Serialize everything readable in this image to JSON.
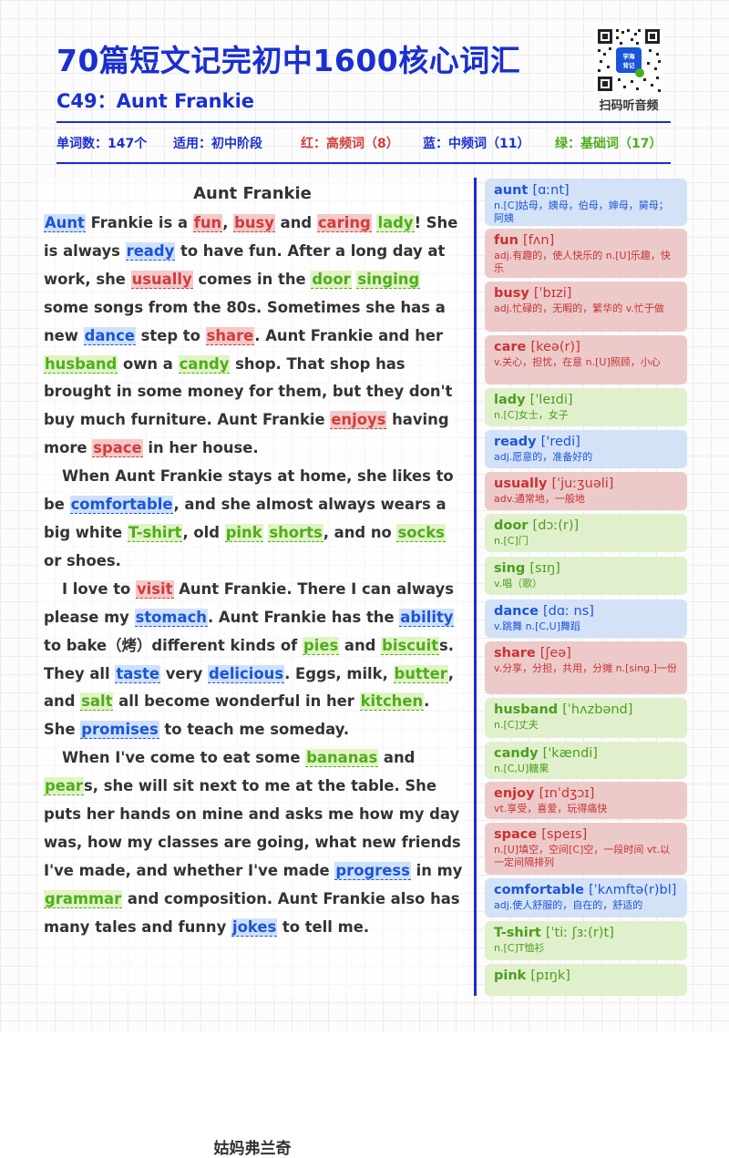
{
  "header": {
    "title": "70篇短文记完初中1600核心词汇",
    "subtitle": "C49：Aunt Frankie",
    "qr_label": "扫码听音频",
    "qr_logo_text": "学海 背记"
  },
  "stats": {
    "words": "单词数：147个",
    "level": "适用：初中阶段",
    "red": "红：高频词（8）",
    "blue": "蓝：中频词（11）",
    "green": "绿：基础词（17）"
  },
  "colors": {
    "brand": "#1a2fd0",
    "red": "#d23c3c",
    "blue": "#1a55d8",
    "green": "#4cae1c"
  },
  "article": {
    "title": "Aunt Frankie",
    "footer": "姑妈弗兰奇",
    "paragraphs": [
      [
        [
          "Aunt",
          "b"
        ],
        [
          " Frankie is a ",
          ""
        ],
        [
          "fun",
          "r"
        ],
        [
          ", ",
          ""
        ],
        [
          "busy",
          "r"
        ],
        [
          " and ",
          ""
        ],
        [
          "caring",
          "r"
        ],
        [
          " ",
          ""
        ],
        [
          "lady",
          "g"
        ],
        [
          "! She is always ",
          ""
        ],
        [
          "ready",
          "b"
        ],
        [
          " to have fun. After a long day at work, she ",
          ""
        ],
        [
          "usually",
          "r"
        ],
        [
          " comes in the ",
          ""
        ],
        [
          "door",
          "g"
        ],
        [
          " ",
          ""
        ],
        [
          "singing",
          "g"
        ],
        [
          " some songs from the 80s. Sometimes she has a new ",
          ""
        ],
        [
          "dance",
          "b"
        ],
        [
          " step to ",
          ""
        ],
        [
          "share",
          "r"
        ],
        [
          ". Aunt Frankie and her ",
          ""
        ],
        [
          "husband",
          "g"
        ],
        [
          " own a ",
          ""
        ],
        [
          "candy",
          "g"
        ],
        [
          " shop. That shop has brought in some money for them, but they don't buy much furniture. Aunt Frankie ",
          ""
        ],
        [
          "enjoys",
          "r"
        ],
        [
          " having more ",
          ""
        ],
        [
          "space",
          "r"
        ],
        [
          " in her house.",
          ""
        ]
      ],
      [
        [
          "When Aunt Frankie stays at home, she likes to be ",
          ""
        ],
        [
          "comfortable",
          "b"
        ],
        [
          ", and she almost always wears a big white ",
          ""
        ],
        [
          "T-shirt",
          "g"
        ],
        [
          ", old ",
          ""
        ],
        [
          "pink",
          "g"
        ],
        [
          " ",
          ""
        ],
        [
          "shorts",
          "g"
        ],
        [
          ", and no ",
          ""
        ],
        [
          "socks",
          "g"
        ],
        [
          " or shoes.",
          ""
        ]
      ],
      [
        [
          "I love to ",
          ""
        ],
        [
          "visit",
          "r"
        ],
        [
          " Aunt Frankie. There I can always please my ",
          ""
        ],
        [
          "stomach",
          "b"
        ],
        [
          ". Aunt Frankie has the ",
          ""
        ],
        [
          "ability",
          "b"
        ],
        [
          " to bake（烤）different kinds of ",
          ""
        ],
        [
          "pies",
          "g"
        ],
        [
          " and ",
          ""
        ],
        [
          "biscuit",
          "g"
        ],
        [
          "s. They all ",
          ""
        ],
        [
          "taste",
          "b"
        ],
        [
          " very ",
          ""
        ],
        [
          "delicious",
          "b"
        ],
        [
          ". Eggs, milk, ",
          ""
        ],
        [
          "butter",
          "g"
        ],
        [
          ", and ",
          ""
        ],
        [
          "salt",
          "g"
        ],
        [
          " all become wonderful in her ",
          ""
        ],
        [
          "kitchen",
          "g"
        ],
        [
          ". She ",
          ""
        ],
        [
          "promises",
          "b"
        ],
        [
          " to teach me someday.",
          ""
        ]
      ],
      [
        [
          "When I've come to eat some ",
          ""
        ],
        [
          "bananas",
          "g"
        ],
        [
          " and ",
          ""
        ],
        [
          "pear",
          "g"
        ],
        [
          "s, she will sit next to me at the table. She puts her hands on mine and asks me how my day was, how my classes are going, what new friends I've made, and whether I've made ",
          ""
        ],
        [
          "progress",
          "b"
        ],
        [
          " in my ",
          ""
        ],
        [
          "grammar",
          "g"
        ],
        [
          " and composition. Aunt Frankie also has many tales and funny ",
          ""
        ],
        [
          "jokes",
          "b"
        ],
        [
          " to tell me.",
          ""
        ]
      ]
    ]
  },
  "vocab": [
    {
      "word": "aunt",
      "phon": "[ɑːnt]",
      "def": "n.[C]姑母，姨母，伯母，婶母，舅母；阿姨",
      "c": "b"
    },
    {
      "word": "fun",
      "phon": "[fʌn]",
      "def": "adj.有趣的，使人快乐的 n.[U]乐趣，快乐",
      "c": "r"
    },
    {
      "word": "busy",
      "phon": "[ˈbɪzi]",
      "def": "adj.忙碌的，无暇的，繁华的 v.忙于做",
      "c": "r"
    },
    {
      "word": "care",
      "phon": "[keə(r)]",
      "def": "v.关心，担忧，在意 n.[U]照顾，小心",
      "c": "r"
    },
    {
      "word": "lady",
      "phon": "[ˈleɪdi]",
      "def": "n.[C]女士，女子",
      "c": "g"
    },
    {
      "word": "ready",
      "phon": "['redi]",
      "def": "adj.愿意的，准备好的",
      "c": "b"
    },
    {
      "word": "usually",
      "phon": "[ˈjuːʒuəli]",
      "def": "adv.通常地，一般地",
      "c": "r"
    },
    {
      "word": "door",
      "phon": "[dɔː(r)]",
      "def": "n.[C]门",
      "c": "g"
    },
    {
      "word": "sing",
      "phon": "[sɪŋ]",
      "def": "v.唱（歌）",
      "c": "g"
    },
    {
      "word": "dance",
      "phon": "[dɑː ns]",
      "def": "v.跳舞 n.[C,U]舞蹈",
      "c": "b"
    },
    {
      "word": "share",
      "phon": "[ʃeə]",
      "def": "v.分享，分担，共用，分摊 n.[sing.]一份",
      "c": "r"
    },
    {
      "word": "husband",
      "phon": "[ˈhʌzbənd]",
      "def": "n.[C]丈夫",
      "c": "g"
    },
    {
      "word": "candy",
      "phon": "['kændi]",
      "def": "n.[C,U]糖果",
      "c": "g"
    },
    {
      "word": "enjoy",
      "phon": "[ɪnˈdʒɔɪ]",
      "def": "vt.享受，喜爱，玩得痛快",
      "c": "r"
    },
    {
      "word": "space",
      "phon": "[speɪs]",
      "def": "n.[U]填空，空间[C]空，一段时间 vt.以一定间隔排列",
      "c": "r"
    },
    {
      "word": "comfortable",
      "phon": "[ˈkʌmftə(r)bl]",
      "def": "adj.使人舒服的，自在的，舒适的",
      "c": "b"
    },
    {
      "word": "T-shirt",
      "phon": "[ˈtiː ʃɜː(r)t]",
      "def": "n.[C]T恤衫",
      "c": "g"
    },
    {
      "word": "pink",
      "phon": "[pɪŋk]",
      "def": "",
      "c": "g"
    }
  ]
}
